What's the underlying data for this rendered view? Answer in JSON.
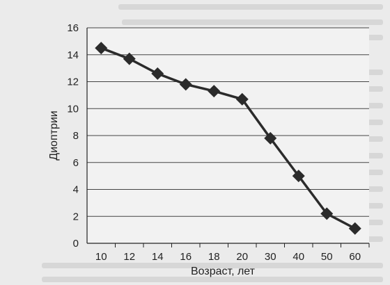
{
  "chart_data": {
    "type": "line",
    "title": "",
    "xlabel": "Возраст, лет",
    "ylabel": "Диоптрии",
    "categories": [
      "10",
      "12",
      "14",
      "16",
      "18",
      "20",
      "30",
      "40",
      "50",
      "60"
    ],
    "series": [
      {
        "values": [
          14.5,
          13.7,
          12.6,
          11.8,
          11.3,
          10.7,
          7.8,
          5.0,
          2.2,
          1.1
        ]
      }
    ],
    "ylim": [
      0,
      16
    ],
    "yticks": [
      "0",
      "2",
      "4",
      "6",
      "8",
      "10",
      "12",
      "14",
      "16"
    ],
    "grid": "horizontal",
    "marker": "diamond",
    "line_color": "#2b2b2b"
  }
}
